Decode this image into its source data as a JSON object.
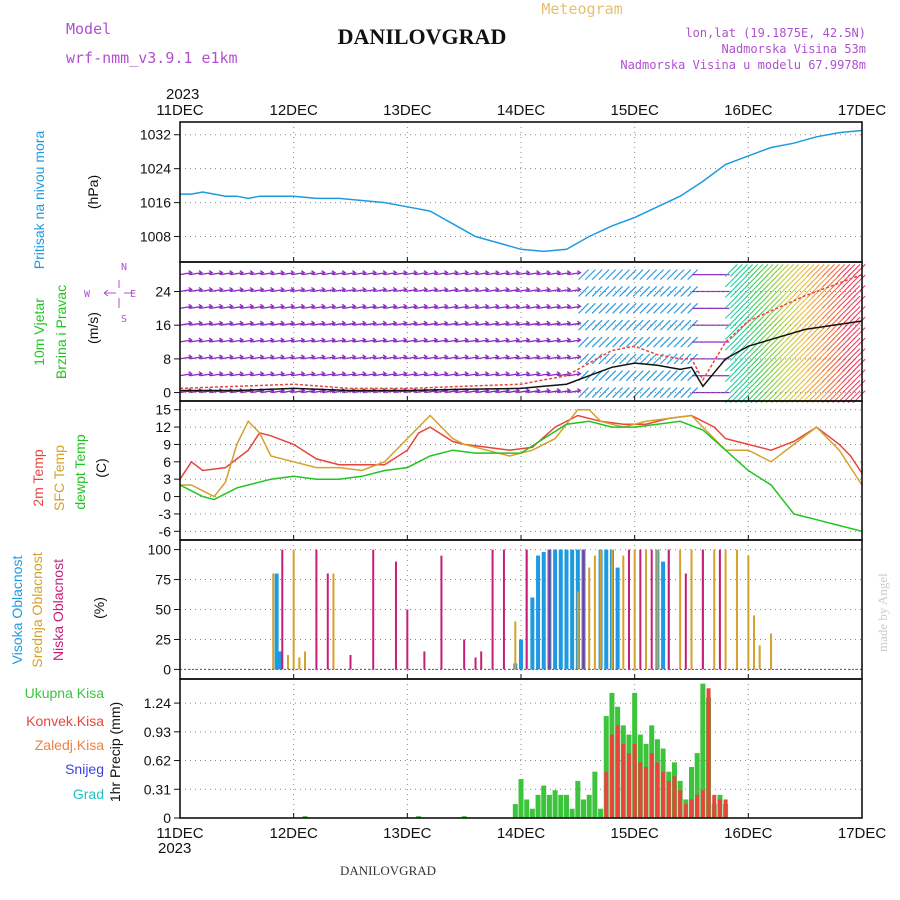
{
  "header": {
    "model_label": "Model",
    "model_name": "wrf-nmm_v3.9.1 e1km",
    "title": "DANILOVGRAD",
    "subtitle": "Meteogram",
    "lonlat": "lon,lat (19.1875E, 42.5N)",
    "altitude": "Nadmorska Visina 53m",
    "model_altitude": "Nadmorska Visina u modelu 67.9978m",
    "footer": "DANILOVGRAD",
    "credit": "made by Angel",
    "year": "2023"
  },
  "colors": {
    "pressure": "#1e9be0",
    "temp2m": "#e8453c",
    "sfc": "#d4a22c",
    "dew": "#22c422",
    "high": "#1e9be0",
    "mid": "#d4a22c",
    "low": "#c41e7a",
    "precip_total": "#3cc43c",
    "precip_conv": "#e8453c",
    "snow": "#4040e0",
    "hail": "#20c0c0",
    "frz": "#f0803c",
    "label_purple": "#b050d0"
  },
  "chart_data": [
    {
      "type": "line",
      "panel": "pressure",
      "title": "",
      "ylabel_lines": [
        "Pritisak na nivou mora",
        "(hPa)"
      ],
      "x_ticks": [
        "11DEC",
        "12DEC",
        "13DEC",
        "14DEC",
        "15DEC",
        "16DEC",
        "17DEC"
      ],
      "ylim": [
        1002,
        1035
      ],
      "yticks": [
        1008,
        1016,
        1024,
        1032
      ],
      "grid": true,
      "series": [
        {
          "name": "",
          "x": [
            0,
            0.1,
            0.2,
            0.3,
            0.4,
            0.5,
            0.6,
            0.7,
            0.8,
            0.9,
            1.0,
            1.2,
            1.4,
            1.6,
            1.8,
            2.0,
            2.2,
            2.4,
            2.6,
            2.8,
            3.0,
            3.2,
            3.4,
            3.6,
            3.8,
            4.0,
            4.2,
            4.4,
            4.6,
            4.8,
            5.0,
            5.2,
            5.4,
            5.6,
            5.8,
            6.0
          ],
          "values": [
            1018,
            1018,
            1018.5,
            1018,
            1017.5,
            1017.5,
            1017,
            1017.5,
            1017.5,
            1017.5,
            1017.5,
            1017,
            1017,
            1016.5,
            1016,
            1015,
            1014,
            1011,
            1008,
            1006.5,
            1005,
            1004.5,
            1005,
            1008,
            1010.5,
            1012.5,
            1015,
            1017.5,
            1021,
            1025,
            1027,
            1029,
            1030,
            1031.5,
            1032.5,
            1033
          ]
        }
      ]
    },
    {
      "type": "line",
      "panel": "wind",
      "title": "",
      "ylabel_lines": [
        "10m Vjetar",
        "Brzina i Pravac",
        "(m/s)"
      ],
      "legend_compass": [
        "N",
        "E",
        "S",
        "W"
      ],
      "ylim": [
        -2,
        31
      ],
      "yticks": [
        0,
        8,
        16,
        24
      ],
      "grid": true,
      "series": [
        {
          "name": "",
          "x": [
            0,
            0.5,
            1,
            1.5,
            2,
            2.5,
            3,
            3.2,
            3.4,
            3.6,
            3.8,
            4.0,
            4.2,
            4.4,
            4.5,
            4.6,
            4.8,
            5.0,
            5.5,
            6.0
          ],
          "values": [
            0.5,
            0.5,
            1,
            0.5,
            0.5,
            0.8,
            1,
            1.5,
            2,
            4,
            6,
            7,
            6.5,
            5.5,
            6,
            1.5,
            8,
            11,
            15,
            17
          ]
        },
        {
          "name": "",
          "x": [
            0,
            0.5,
            1,
            1.5,
            2,
            2.5,
            3,
            3.2,
            3.4,
            3.6,
            3.8,
            4.0,
            4.2,
            4.4,
            4.5,
            4.6,
            4.8,
            5.0,
            5.5,
            6.0
          ],
          "values": [
            1,
            1.5,
            2,
            1,
            1,
            1.5,
            2,
            3,
            4,
            7,
            10,
            11,
            9,
            8,
            8,
            3,
            12,
            17,
            23,
            28
          ]
        }
      ]
    },
    {
      "type": "line",
      "panel": "temperature",
      "title": "",
      "ylabel_lines": [
        "2m Temp",
        "SFC Temp",
        "dewpt Temp",
        "(C)"
      ],
      "ylim": [
        -7.5,
        16.5
      ],
      "yticks": [
        -6,
        -3,
        0,
        3,
        6,
        9,
        12,
        15
      ],
      "grid": true,
      "series": [
        {
          "name": "2m Temp",
          "x": [
            0,
            0.1,
            0.2,
            0.4,
            0.6,
            0.7,
            0.8,
            1.0,
            1.2,
            1.4,
            1.6,
            1.8,
            2.0,
            2.1,
            2.2,
            2.4,
            2.5,
            2.7,
            2.9,
            3.1,
            3.3,
            3.5,
            3.7,
            3.9,
            4.1,
            4.3,
            4.5,
            4.7,
            4.8,
            5.0,
            5.2,
            5.4,
            5.6,
            5.8,
            5.9,
            6.0
          ],
          "values": [
            3,
            6,
            4.5,
            5,
            8,
            11,
            10.5,
            9,
            6.5,
            5.5,
            5.5,
            5.5,
            8,
            11,
            12,
            9.5,
            9,
            8.5,
            8,
            8.5,
            12,
            14,
            13,
            12.5,
            12.5,
            13.5,
            14,
            12,
            10,
            9,
            8,
            9.5,
            12,
            9,
            7,
            4
          ]
        },
        {
          "name": "SFC Temp",
          "x": [
            0,
            0.1,
            0.2,
            0.3,
            0.4,
            0.5,
            0.6,
            0.7,
            0.8,
            1.0,
            1.2,
            1.4,
            1.6,
            1.8,
            2.0,
            2.2,
            2.4,
            2.5,
            2.7,
            2.9,
            3.1,
            3.3,
            3.5,
            3.6,
            3.7,
            3.9,
            4.1,
            4.3,
            4.5,
            4.7,
            4.8,
            5.0,
            5.2,
            5.4,
            5.6,
            5.8,
            5.9,
            6.0
          ],
          "values": [
            2,
            2,
            1,
            0,
            2.5,
            9,
            13,
            11,
            7,
            6,
            5,
            5,
            4.5,
            6,
            10,
            14,
            10,
            9,
            8,
            7,
            8,
            10,
            15,
            15,
            13,
            12,
            13,
            13.5,
            14,
            10,
            8,
            8,
            6,
            9,
            12,
            8,
            5,
            2
          ]
        },
        {
          "name": "dewpt Temp",
          "x": [
            0,
            0.1,
            0.2,
            0.3,
            0.4,
            0.5,
            0.6,
            0.8,
            1.0,
            1.2,
            1.4,
            1.6,
            1.8,
            2.0,
            2.2,
            2.4,
            2.6,
            2.8,
            3.0,
            3.2,
            3.4,
            3.6,
            3.8,
            4.0,
            4.2,
            4.4,
            4.6,
            4.8,
            5.0,
            5.2,
            5.4,
            5.6,
            5.8,
            6.0
          ],
          "values": [
            2,
            1,
            0,
            -0.5,
            0.5,
            1.5,
            2,
            3,
            3.5,
            3,
            3,
            3.5,
            4.5,
            5,
            7,
            8,
            7.5,
            7.5,
            7.5,
            10,
            12.5,
            13,
            12,
            12,
            12.5,
            13,
            11.5,
            8,
            4.5,
            2,
            -3,
            -4,
            -5,
            -6
          ]
        }
      ]
    },
    {
      "type": "bar",
      "panel": "clouds",
      "title": "",
      "ylabel_lines": [
        "Visoka Oblacnost",
        "Srednja Oblacnost",
        "Niska Oblacnost",
        "(%)"
      ],
      "ylim": [
        -8,
        108
      ],
      "yticks": [
        0,
        25,
        50,
        75,
        100
      ],
      "grid": true,
      "series": [
        {
          "name": "Visoka Oblacnost",
          "x": [
            0.85,
            0.88,
            2.95,
            3.0,
            3.1,
            3.15,
            3.2,
            3.25,
            3.3,
            3.35,
            3.4,
            3.45,
            3.5,
            3.55,
            3.7,
            3.75,
            3.8,
            3.85,
            4.2,
            4.25
          ],
          "values": [
            80,
            15,
            5,
            25,
            60,
            95,
            98,
            100,
            100,
            100,
            100,
            100,
            100,
            100,
            100,
            100,
            100,
            85,
            100,
            90
          ]
        },
        {
          "name": "Srednja Oblacnost",
          "x": [
            0.82,
            0.95,
            1.0,
            1.05,
            1.1,
            1.35,
            2.95,
            3.05,
            3.5,
            3.55,
            3.6,
            3.65,
            3.7,
            3.8,
            3.9,
            4.0,
            4.1,
            4.2,
            4.3,
            4.4,
            4.5,
            4.6,
            4.7,
            4.8,
            4.9,
            5.0,
            5.05,
            5.1,
            5.2
          ],
          "values": [
            80,
            12,
            100,
            10,
            15,
            80,
            40,
            100,
            65,
            45,
            85,
            95,
            100,
            100,
            95,
            100,
            100,
            100,
            100,
            100,
            100,
            100,
            100,
            100,
            100,
            95,
            45,
            20,
            30
          ]
        },
        {
          "name": "Niska Oblacnost",
          "x": [
            0.9,
            1.2,
            1.3,
            1.5,
            1.7,
            1.9,
            2.0,
            2.15,
            2.3,
            2.5,
            2.6,
            2.65,
            2.75,
            2.85,
            3.05,
            3.25,
            3.55,
            3.95,
            4.05,
            4.15,
            4.3,
            4.45,
            4.6,
            4.75
          ],
          "values": [
            100,
            100,
            80,
            12,
            100,
            90,
            50,
            15,
            95,
            25,
            10,
            15,
            100,
            100,
            100,
            100,
            100,
            100,
            100,
            100,
            100,
            80,
            100,
            100
          ]
        }
      ]
    },
    {
      "type": "bar",
      "panel": "precipitation",
      "title": "",
      "ylabel_lines": [
        "1hr Precip (mm)"
      ],
      "legend": [
        "Ukupna Kisa",
        "Konvek.Kisa",
        "Zaledj.Kisa",
        "Snijeg",
        "Grad"
      ],
      "ylim": [
        0,
        1.5
      ],
      "yticks": [
        0,
        0.31,
        0.62,
        0.93,
        1.24
      ],
      "grid": true,
      "series": [
        {
          "name": "Ukupna Kisa",
          "x": [
            1.1,
            2.1,
            2.5,
            2.95,
            3.0,
            3.05,
            3.1,
            3.15,
            3.2,
            3.25,
            3.3,
            3.35,
            3.4,
            3.45,
            3.5,
            3.55,
            3.6,
            3.65,
            3.7,
            3.75,
            3.8,
            3.85,
            3.9,
            3.95,
            4.0,
            4.05,
            4.1,
            4.15,
            4.2,
            4.25,
            4.3,
            4.35,
            4.4,
            4.45,
            4.5,
            4.55,
            4.6,
            4.65,
            4.7,
            4.75,
            4.8
          ],
          "values": [
            0.02,
            0.02,
            0.02,
            0.15,
            0.42,
            0.2,
            0.1,
            0.25,
            0.35,
            0.25,
            0.3,
            0.25,
            0.25,
            0.1,
            0.4,
            0.2,
            0.25,
            0.5,
            0.1,
            1.1,
            1.35,
            1.2,
            1.0,
            0.9,
            1.35,
            0.9,
            0.8,
            1.0,
            0.85,
            0.75,
            0.5,
            0.6,
            0.4,
            0.2,
            0.55,
            0.7,
            1.45,
            1.3,
            0.15,
            0.25,
            0.15
          ]
        },
        {
          "name": "Konvek.Kisa",
          "x": [
            3.75,
            3.8,
            3.85,
            3.9,
            3.95,
            4.0,
            4.05,
            4.1,
            4.15,
            4.2,
            4.25,
            4.3,
            4.35,
            4.4,
            4.45,
            4.5,
            4.55,
            4.6,
            4.65,
            4.7,
            4.75,
            4.8
          ],
          "values": [
            0.5,
            0.9,
            1.0,
            0.8,
            0.7,
            0.8,
            0.6,
            0.55,
            0.7,
            0.6,
            0.5,
            0.4,
            0.45,
            0.3,
            0.15,
            0.2,
            0.25,
            0.3,
            1.4,
            0.25,
            0.2,
            0.2
          ]
        }
      ]
    }
  ]
}
